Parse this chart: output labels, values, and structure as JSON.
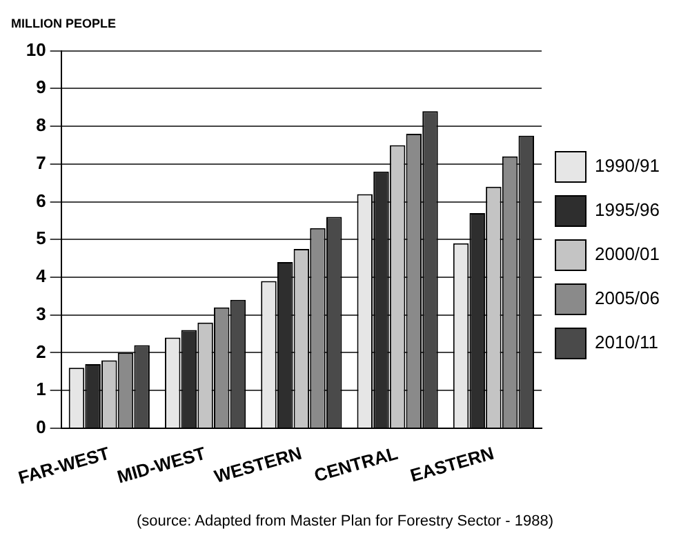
{
  "chart_data": {
    "type": "bar",
    "ylabel": "MILLION PEOPLE",
    "categories": [
      "FAR-WEST",
      "MID-WEST",
      "WESTERN",
      "CENTRAL",
      "EASTERN"
    ],
    "series": [
      {
        "name": "1990/91",
        "color": "#e6e6e6",
        "values": [
          1.6,
          2.4,
          3.9,
          6.2,
          4.9
        ]
      },
      {
        "name": "1995/96",
        "color": "#2e2e2e",
        "values": [
          1.7,
          2.6,
          4.4,
          6.8,
          5.7
        ]
      },
      {
        "name": "2000/01",
        "color": "#c4c4c4",
        "values": [
          1.8,
          2.8,
          4.75,
          7.5,
          6.4
        ]
      },
      {
        "name": "2005/06",
        "color": "#8a8a8a",
        "values": [
          2.0,
          3.2,
          5.3,
          7.8,
          7.2
        ]
      },
      {
        "name": "2010/11",
        "color": "#4a4a4a",
        "values": [
          2.2,
          3.4,
          5.6,
          8.4,
          7.75
        ]
      }
    ],
    "ylim": [
      0,
      10
    ],
    "yticks": [
      0,
      1,
      2,
      3,
      4,
      5,
      6,
      7,
      8,
      9,
      10
    ],
    "grid": "y",
    "legend": "right",
    "annotations": [
      "(source: Adapted from Master Plan for Forestry Sector - 1988)"
    ]
  }
}
